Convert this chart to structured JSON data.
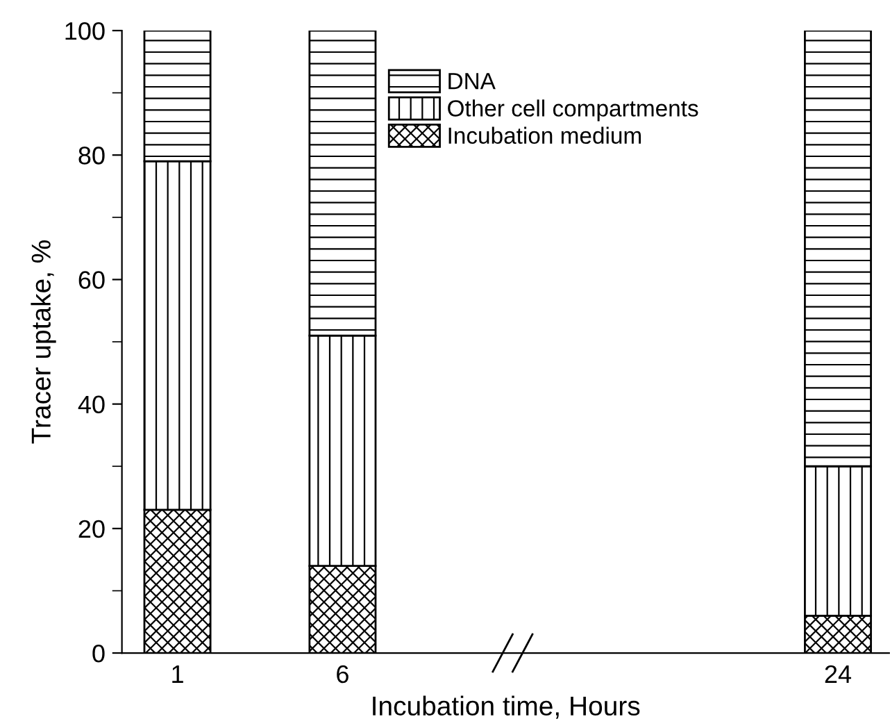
{
  "chart_data": {
    "type": "bar",
    "stacked": true,
    "xlabel": "Incubation time, Hours",
    "ylabel": "Tracer uptake, %",
    "categories": [
      "1",
      "6",
      null,
      null,
      "24"
    ],
    "series": [
      {
        "name": "Incubation medium",
        "color": "#000000",
        "values": [
          23,
          14,
          null,
          null,
          6
        ]
      },
      {
        "name": "Other cell compartments",
        "color": "#000000",
        "values": [
          56,
          37,
          null,
          null,
          24
        ]
      },
      {
        "name": "DNA",
        "color": "#000000",
        "values": [
          21,
          49,
          null,
          null,
          70
        ]
      }
    ],
    "ylim": [
      0,
      100
    ],
    "yticks": [
      0,
      20,
      40,
      60,
      80,
      100
    ],
    "grid": false,
    "legend": "top"
  }
}
